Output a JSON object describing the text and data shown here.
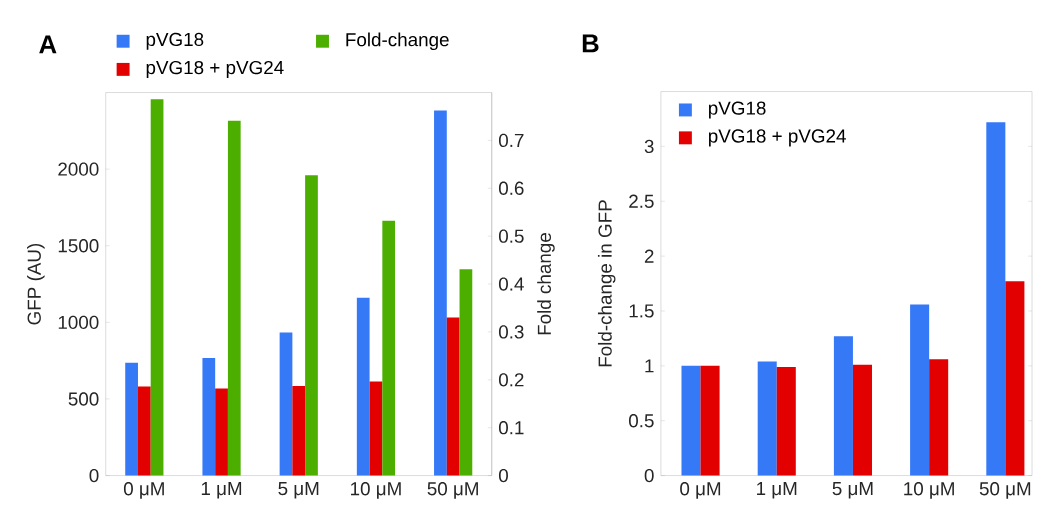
{
  "chart_data": [
    {
      "type": "bar",
      "title": "A",
      "categories": [
        "0 μM",
        "1 μM",
        "5 μM",
        "10 μM",
        "50 μM"
      ],
      "ylabel": "GFP (AU)",
      "y2label": "Fold change",
      "ylim": [
        0,
        2500
      ],
      "yticks": [
        0,
        500,
        1000,
        1500,
        2000
      ],
      "y2lim": [
        0,
        0.8
      ],
      "y2ticks": [
        0,
        0.1,
        0.2,
        0.3,
        0.4,
        0.5,
        0.6,
        0.7
      ],
      "legend": "top",
      "series": [
        {
          "name": "pVG18",
          "color": "#3579f6",
          "values": [
            737,
            767,
            934,
            1160,
            2382
          ]
        },
        {
          "name": "pVG18 + pVG24",
          "color": "#e20000",
          "values": [
            581,
            568,
            585,
            614,
            1032
          ]
        },
        {
          "name": "Fold-change",
          "color": "#4caf00",
          "axis": "y2",
          "values": [
            0.786,
            0.741,
            0.627,
            0.532,
            0.431
          ]
        }
      ]
    },
    {
      "type": "bar",
      "title": "B",
      "categories": [
        "0 μM",
        "1 μM",
        "5 μM",
        "10 μM",
        "50 μM"
      ],
      "ylabel": "Fold-change in GFP",
      "ylim": [
        0,
        3.5
      ],
      "yticks": [
        0,
        0.5,
        1,
        1.5,
        2,
        2.5,
        3
      ],
      "legend": "top left",
      "series": [
        {
          "name": "pVG18",
          "color": "#3579f6",
          "values": [
            1.0,
            1.04,
            1.27,
            1.56,
            3.22
          ]
        },
        {
          "name": "pVG18 + pVG24",
          "color": "#e20000",
          "values": [
            1.0,
            0.99,
            1.01,
            1.06,
            1.77
          ]
        }
      ]
    }
  ]
}
